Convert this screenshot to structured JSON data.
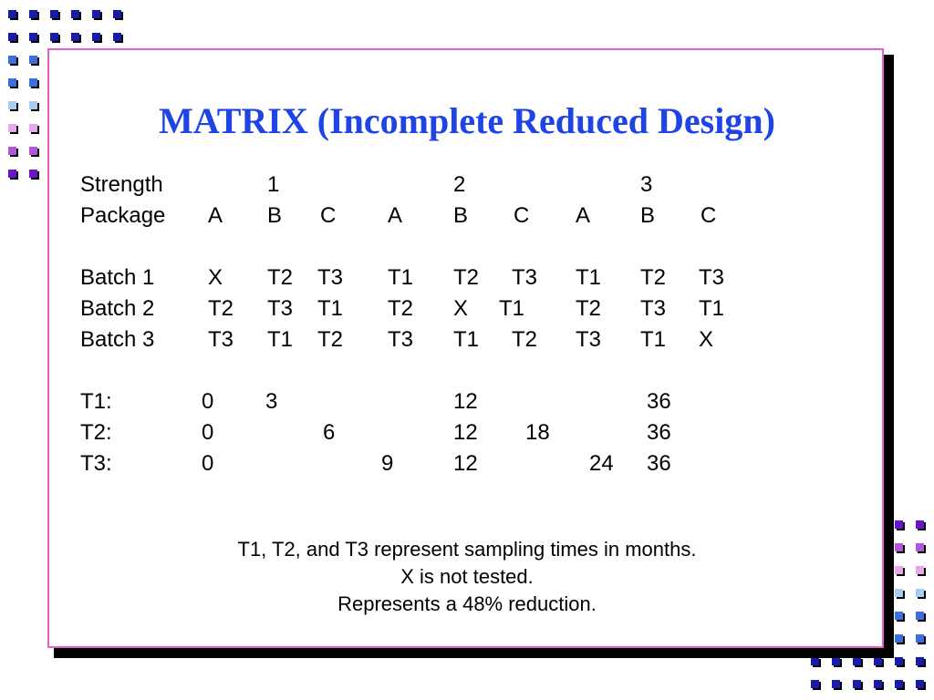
{
  "title": "MATRIX (Incomplete Reduced Design)",
  "table": {
    "strength_label": "Strength",
    "strengths": [
      "1",
      "2",
      "3"
    ],
    "package_label": "Package",
    "packages": [
      "A",
      "B",
      "C",
      "A",
      "B",
      "C",
      "A",
      "B",
      "C"
    ],
    "batches": [
      {
        "label": "Batch 1",
        "cells": [
          "X",
          "T2",
          "T3",
          "T1",
          "T2",
          "T3",
          "T1",
          "T2",
          "T3"
        ]
      },
      {
        "label": "Batch 2",
        "cells": [
          "T2",
          "T3",
          "T1",
          "T2",
          "X",
          "T1",
          "T2",
          "T3",
          "T1"
        ]
      },
      {
        "label": "Batch 3",
        "cells": [
          "T3",
          "T1",
          "T2",
          "T3",
          "T1",
          "T2",
          "T3",
          "T1",
          "X"
        ]
      }
    ],
    "times": [
      {
        "label": "T1:",
        "values": [
          "0",
          "3",
          "12",
          "36"
        ]
      },
      {
        "label": "T2:",
        "values": [
          "0",
          "6",
          "12",
          "18",
          "36"
        ]
      },
      {
        "label": "T3:",
        "values": [
          "0",
          "9",
          "12",
          "24",
          "36"
        ]
      }
    ]
  },
  "notes": [
    "T1, T2, and T3 represent sampling times in months.",
    "X is not tested.",
    "Represents a 48% reduction."
  ],
  "colors": {
    "title": "#1f44e6",
    "border": "#e064c8",
    "sq_dark_blue": "#1a1aa8",
    "sq_blue": "#3b6fe0",
    "sq_light_blue": "#a8cdf0",
    "sq_pink": "#e8a6ef",
    "sq_violet": "#b058d8",
    "sq_purple": "#6a16c8"
  }
}
